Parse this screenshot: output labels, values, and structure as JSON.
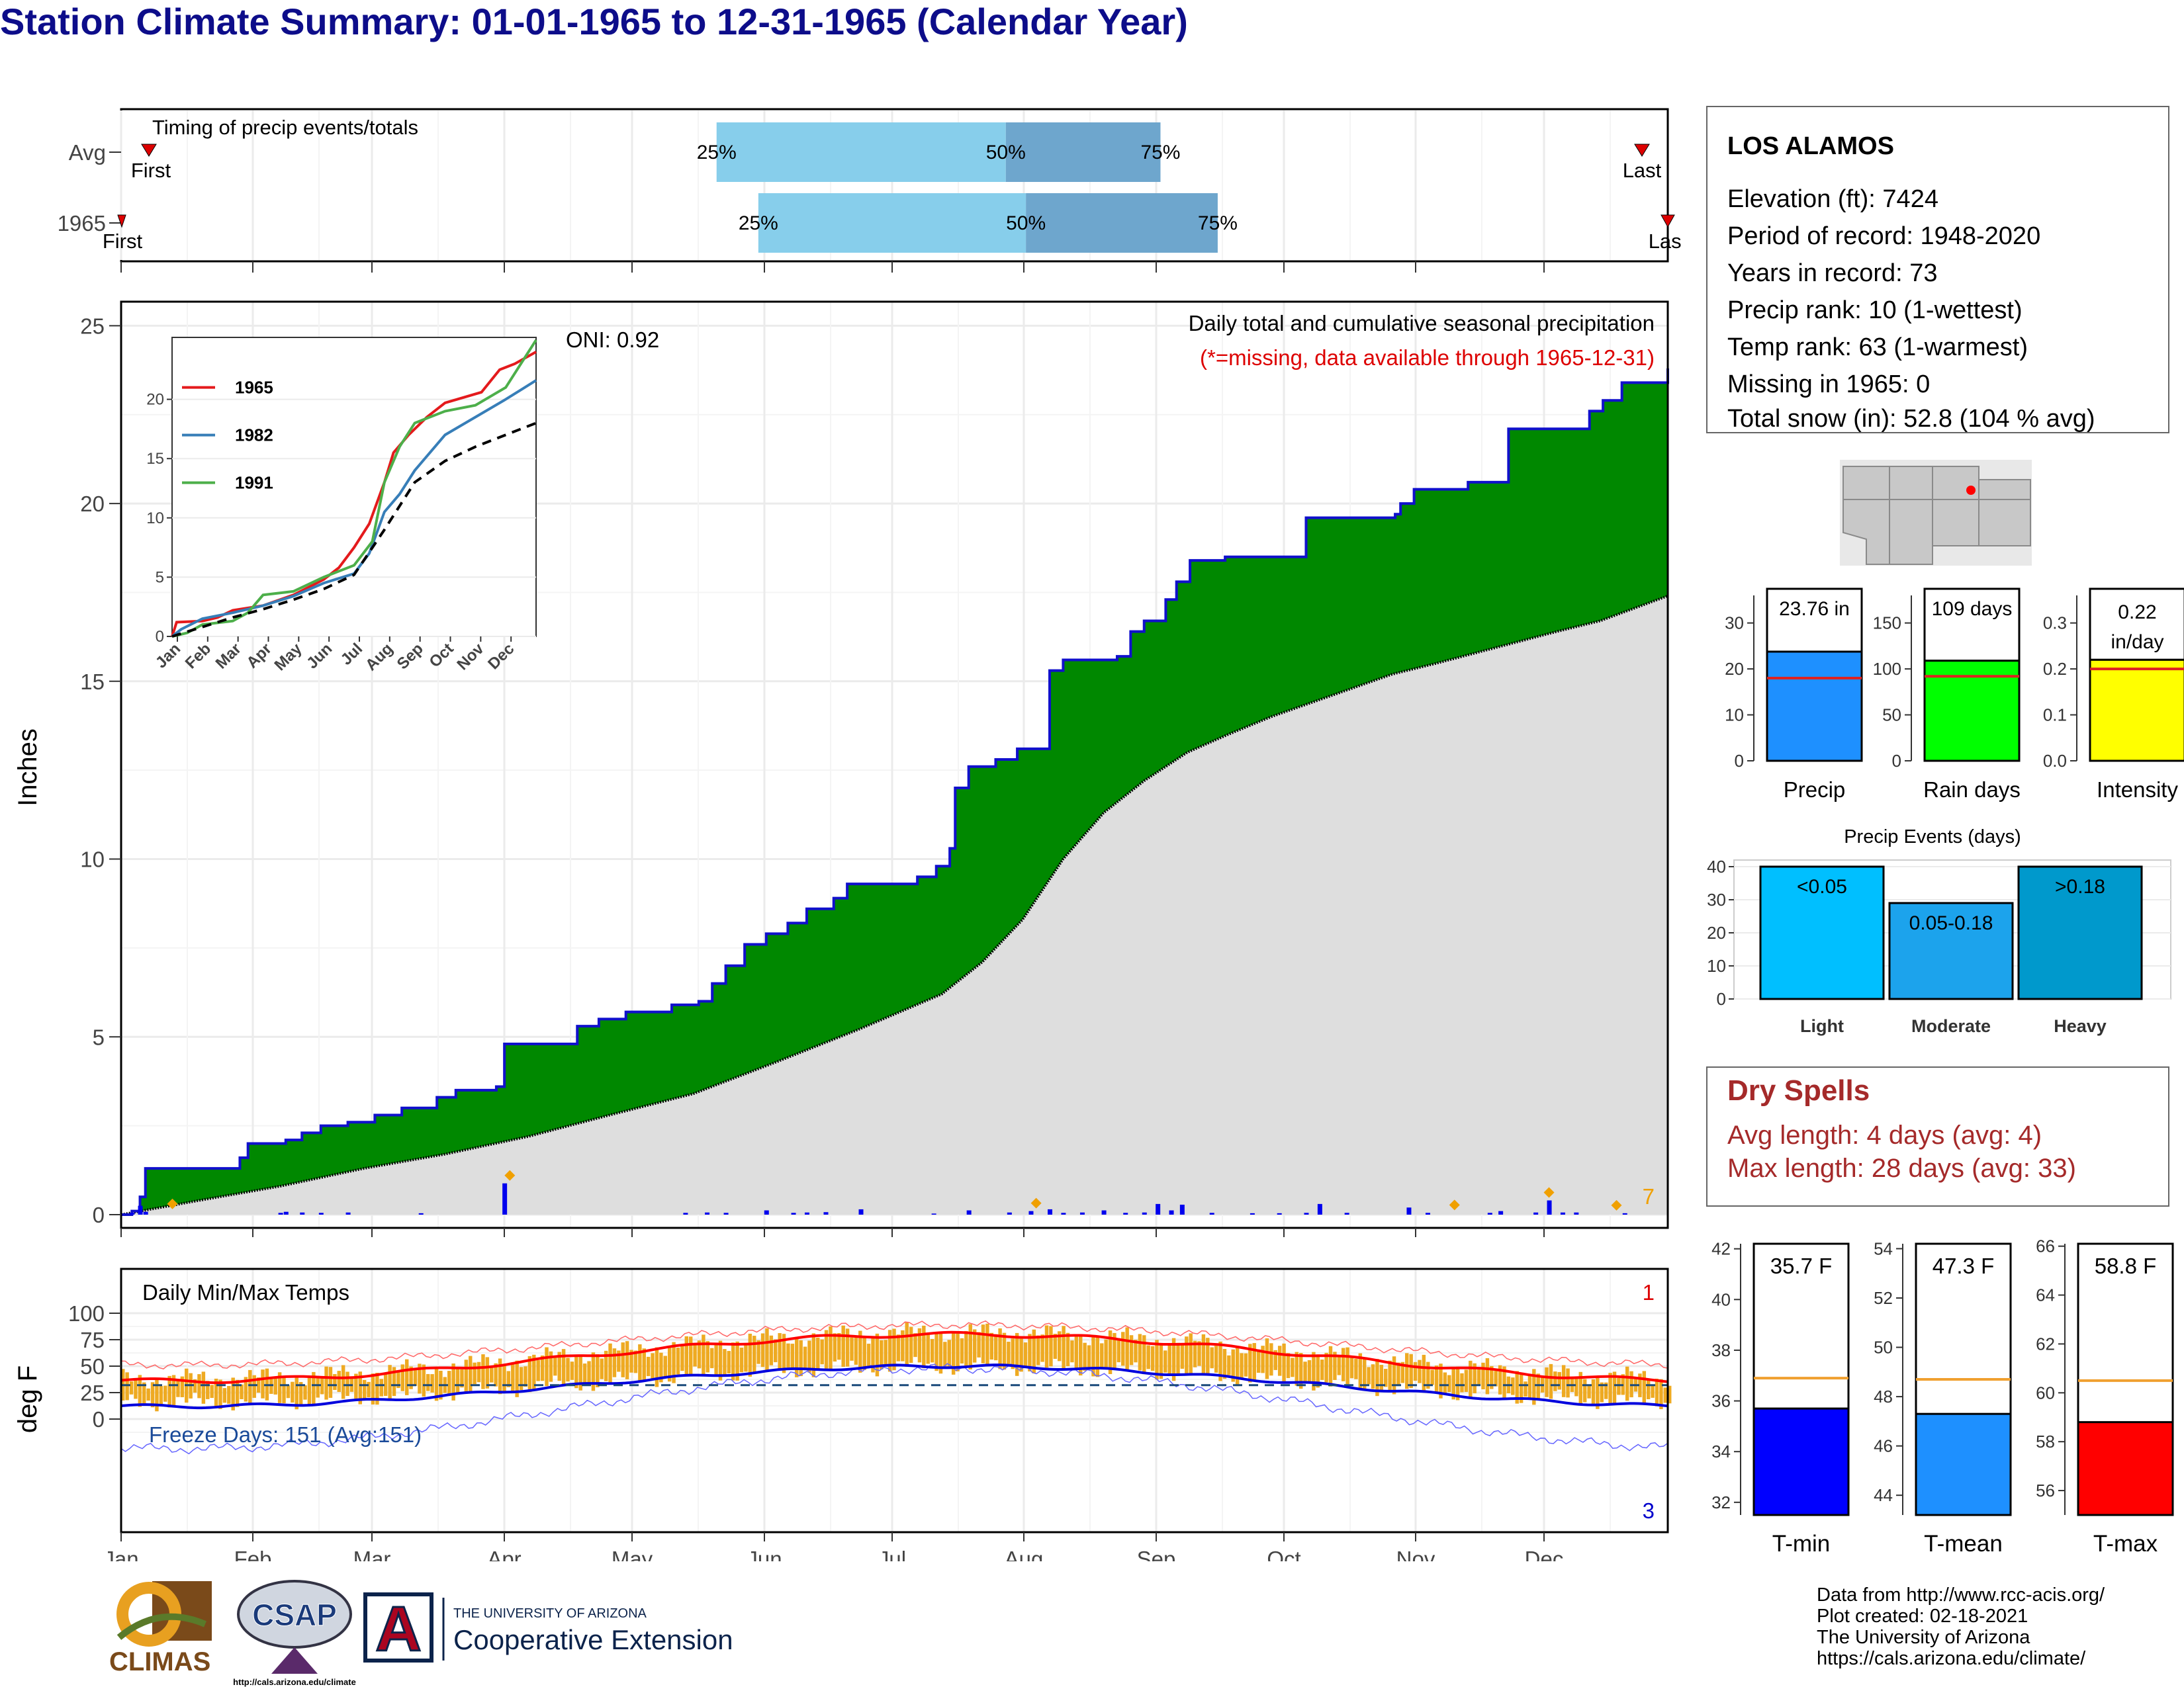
{
  "title": "Station Climate Summary: 01-01-1965 to 12-31-1965 (Calendar Year)",
  "timing": {
    "title": "Timing of precip events/totals",
    "rows": [
      {
        "label": "Avg",
        "first_label": "First",
        "last_label": "Last",
        "p25": 0.385,
        "p50": 0.572,
        "p75": 0.672
      },
      {
        "label": "1965",
        "first_label": "First",
        "last_label": "Last",
        "p25": 0.412,
        "p50": 0.585,
        "p75": 0.709
      }
    ],
    "pct_labels": [
      "25%",
      "50%",
      "75%"
    ],
    "colors": {
      "light": "#87ceeb",
      "dark": "#6ea6cd",
      "marker": "#dd0000"
    }
  },
  "precip": {
    "ylabel": "Inches",
    "header": "Daily total and cumulative seasonal precipitation",
    "missing_note": "(*=missing, data available through 1965-12-31)",
    "oni_label": "ONI: 0.92",
    "corner_count": "7",
    "ylim": [
      0,
      26
    ],
    "yticks": [
      0,
      5,
      10,
      15,
      20,
      25
    ],
    "months": [
      "Jan",
      "Feb",
      "Mar",
      "Apr",
      "May",
      "Jun",
      "Jul",
      "Aug",
      "Sep",
      "Oct",
      "Nov",
      "Dec"
    ],
    "cumulative_observed": [
      [
        1,
        0
      ],
      [
        5,
        0.1
      ],
      [
        8,
        0.5
      ],
      [
        10,
        1.3
      ],
      [
        44,
        1.3
      ],
      [
        45,
        1.6
      ],
      [
        48,
        2.0
      ],
      [
        62,
        2.1
      ],
      [
        68,
        2.3
      ],
      [
        75,
        2.5
      ],
      [
        85,
        2.6
      ],
      [
        95,
        2.8
      ],
      [
        105,
        3.0
      ],
      [
        118,
        3.3
      ],
      [
        125,
        3.5
      ],
      [
        140,
        3.6
      ],
      [
        143,
        4.8
      ],
      [
        165,
        4.8
      ],
      [
        170,
        5.3
      ],
      [
        178,
        5.5
      ],
      [
        188,
        5.7
      ],
      [
        205,
        5.9
      ],
      [
        215,
        6.0
      ],
      [
        220,
        6.5
      ],
      [
        225,
        7.0
      ],
      [
        232,
        7.6
      ],
      [
        240,
        7.9
      ],
      [
        248,
        8.2
      ],
      [
        255,
        8.6
      ],
      [
        265,
        8.9
      ],
      [
        270,
        9.3
      ],
      [
        290,
        9.3
      ],
      [
        296,
        9.5
      ],
      [
        303,
        9.8
      ],
      [
        308,
        10.3
      ],
      [
        310,
        12.0
      ],
      [
        315,
        12.6
      ],
      [
        325,
        12.8
      ],
      [
        333,
        13.1
      ],
      [
        345,
        15.3
      ],
      [
        350,
        15.6
      ],
      [
        370,
        15.7
      ],
      [
        375,
        16.4
      ],
      [
        380,
        16.7
      ],
      [
        388,
        17.3
      ],
      [
        392,
        17.8
      ],
      [
        397,
        18.4
      ],
      [
        410,
        18.5
      ],
      [
        438,
        18.5
      ],
      [
        440,
        19.6
      ],
      [
        473,
        19.7
      ],
      [
        475,
        20.0
      ],
      [
        480,
        20.4
      ],
      [
        500,
        20.6
      ],
      [
        515,
        22.1
      ],
      [
        545,
        22.6
      ],
      [
        550,
        22.9
      ],
      [
        557,
        23.4
      ],
      [
        574,
        23.8
      ]
    ],
    "cumulative_avg": [
      [
        1,
        0
      ],
      [
        30,
        0.4
      ],
      [
        60,
        0.8
      ],
      [
        91,
        1.3
      ],
      [
        121,
        1.7
      ],
      [
        152,
        2.2
      ],
      [
        182,
        2.8
      ],
      [
        213,
        3.4
      ],
      [
        244,
        4.3
      ],
      [
        274,
        5.2
      ],
      [
        305,
        6.2
      ],
      [
        320,
        7.1
      ],
      [
        335,
        8.3
      ],
      [
        350,
        10.0
      ],
      [
        365,
        11.3
      ],
      [
        380,
        12.2
      ],
      [
        396,
        13.0
      ],
      [
        411,
        13.5
      ],
      [
        427,
        14.0
      ],
      [
        442,
        14.4
      ],
      [
        457,
        14.8
      ],
      [
        472,
        15.2
      ],
      [
        488,
        15.5
      ],
      [
        503,
        15.8
      ],
      [
        518,
        16.1
      ],
      [
        533,
        16.4
      ],
      [
        549,
        16.7
      ],
      [
        574,
        17.4
      ]
    ],
    "daily_bars": [
      [
        5,
        0.05
      ],
      [
        8,
        0.25
      ],
      [
        10,
        0.08
      ],
      [
        60,
        0.05
      ],
      [
        62,
        0.08
      ],
      [
        68,
        0.06
      ],
      [
        75,
        0.05
      ],
      [
        85,
        0.06
      ],
      [
        112,
        0.04
      ],
      [
        143,
        0.88
      ],
      [
        210,
        0.05
      ],
      [
        218,
        0.06
      ],
      [
        225,
        0.05
      ],
      [
        240,
        0.12
      ],
      [
        250,
        0.05
      ],
      [
        255,
        0.06
      ],
      [
        262,
        0.07
      ],
      [
        275,
        0.15
      ],
      [
        302,
        0.03
      ],
      [
        315,
        0.12
      ],
      [
        330,
        0.06
      ],
      [
        338,
        0.1
      ],
      [
        345,
        0.15
      ],
      [
        350,
        0.05
      ],
      [
        357,
        0.06
      ],
      [
        365,
        0.12
      ],
      [
        373,
        0.05
      ],
      [
        380,
        0.06
      ],
      [
        385,
        0.3
      ],
      [
        390,
        0.12
      ],
      [
        394,
        0.28
      ],
      [
        405,
        0.05
      ],
      [
        420,
        0.04
      ],
      [
        430,
        0.04
      ],
      [
        440,
        0.05
      ],
      [
        445,
        0.3
      ],
      [
        455,
        0.05
      ],
      [
        478,
        0.2
      ],
      [
        485,
        0.05
      ],
      [
        508,
        0.05
      ],
      [
        512,
        0.1
      ],
      [
        525,
        0.06
      ],
      [
        530,
        0.4
      ],
      [
        535,
        0.06
      ],
      [
        540,
        0.06
      ],
      [
        558,
        0.04
      ]
    ],
    "oni_marker_days": [
      20,
      145,
      340,
      495,
      530,
      555
    ],
    "inset": {
      "xlabels": [
        "Jan",
        "Feb",
        "Mar",
        "Apr",
        "May",
        "Jun",
        "Jul",
        "Aug",
        "Sep",
        "Oct",
        "Nov",
        "Dec"
      ],
      "yticks": [
        0,
        5,
        10,
        15,
        20
      ],
      "ylim": [
        0,
        25
      ],
      "series": [
        {
          "name": "1965",
          "color": "#e41a1c"
        },
        {
          "name": "1982",
          "color": "#377eb8"
        },
        {
          "name": "1991",
          "color": "#4daf4a"
        }
      ]
    }
  },
  "temps": {
    "ylabel": "deg F",
    "title": "Daily Min/Max Temps",
    "freeze_label": "Freeze Days: 151 (Avg:151)",
    "record_high_count": "1",
    "record_low_count": "3",
    "ylim": [
      -20,
      100
    ],
    "yticks": [
      0,
      25,
      50,
      75,
      100
    ],
    "freeze_line": 32,
    "months": [
      "Jan",
      "Feb",
      "Mar",
      "Apr",
      "May",
      "Jun",
      "Jul",
      "Aug",
      "Sep",
      "Oct",
      "Nov",
      "Dec"
    ]
  },
  "station": {
    "name": "LOS ALAMOS",
    "lines": [
      "Elevation (ft): 7424",
      "Period of record: 1948-2020",
      "Years in record: 73",
      "Precip rank: 10 (1-wettest)",
      "Temp rank: 63 (1-warmest)",
      "Missing in 1965: 0",
      "Total snow (in): 52.8 (104 % avg)"
    ]
  },
  "summary_bars": [
    {
      "label": "Precip",
      "value_label": "23.76 in",
      "value": 23.76,
      "avg": 18,
      "ymax": 36,
      "yticks": [
        0,
        10,
        20,
        30
      ],
      "color": "#1e90ff"
    },
    {
      "label": "Rain days",
      "value_label": "109 days",
      "value": 109,
      "avg": 92,
      "ymax": 180,
      "yticks": [
        0,
        50,
        100,
        150
      ],
      "color": "#00ff00"
    },
    {
      "label": "Intensity",
      "value_label": "0.22 in/day",
      "value": 0.22,
      "avg": 0.2,
      "ymax": 0.36,
      "yticks": [
        0.0,
        0.1,
        0.2,
        0.3
      ],
      "color": "#ffff00"
    }
  ],
  "events": {
    "title": "Precip Events (days)",
    "yticks": [
      0,
      10,
      20,
      30,
      40
    ],
    "ymax": 42,
    "bars": [
      {
        "label": "Light",
        "bin": "<0.05",
        "value": 40,
        "color": "#00bfff"
      },
      {
        "label": "Moderate",
        "bin": "0.05-0.18",
        "value": 29,
        "color": "#1ca3ec"
      },
      {
        "label": "Heavy",
        "bin": ">0.18",
        "value": 40,
        "color": "#0099cc"
      }
    ]
  },
  "dry_spells": {
    "title": "Dry Spells",
    "avg_line": "Avg length: 4 days (avg: 4)",
    "max_line": "Max length: 28 days (avg: 33)"
  },
  "temp_bars": [
    {
      "label": "T-min",
      "value_label": "35.7 F",
      "value": 35.7,
      "avg": 36.9,
      "ymin": 31.5,
      "ymax": 42.2,
      "yticks": [
        32,
        34,
        36,
        38,
        40,
        42
      ],
      "color": "#0000ff"
    },
    {
      "label": "T-mean",
      "value_label": "47.3 F",
      "value": 47.3,
      "avg": 48.7,
      "ymin": 43.2,
      "ymax": 54.2,
      "yticks": [
        44,
        46,
        48,
        50,
        52,
        54
      ],
      "color": "#1e90ff"
    },
    {
      "label": "T-max",
      "value_label": "58.8 F",
      "value": 58.8,
      "avg": 60.5,
      "ymin": 55.0,
      "ymax": 66.1,
      "yticks": [
        56,
        58,
        60,
        62,
        64,
        66
      ],
      "color": "#ff0000"
    }
  ],
  "footer": {
    "lines": [
      "Data from http://www.rcc-acis.org/",
      "Plot created: 02-18-2021",
      "The University of Arizona",
      "https://cals.arizona.edu/climate/"
    ]
  },
  "logos": {
    "climas": "CLIMAS",
    "csap": "CSAP",
    "csap_url": "http://cals.arizona.edu/climate",
    "ua_small": "THE UNIVERSITY OF ARIZONA",
    "ua_big": "Cooperative Extension",
    "ua_letter": "A"
  }
}
